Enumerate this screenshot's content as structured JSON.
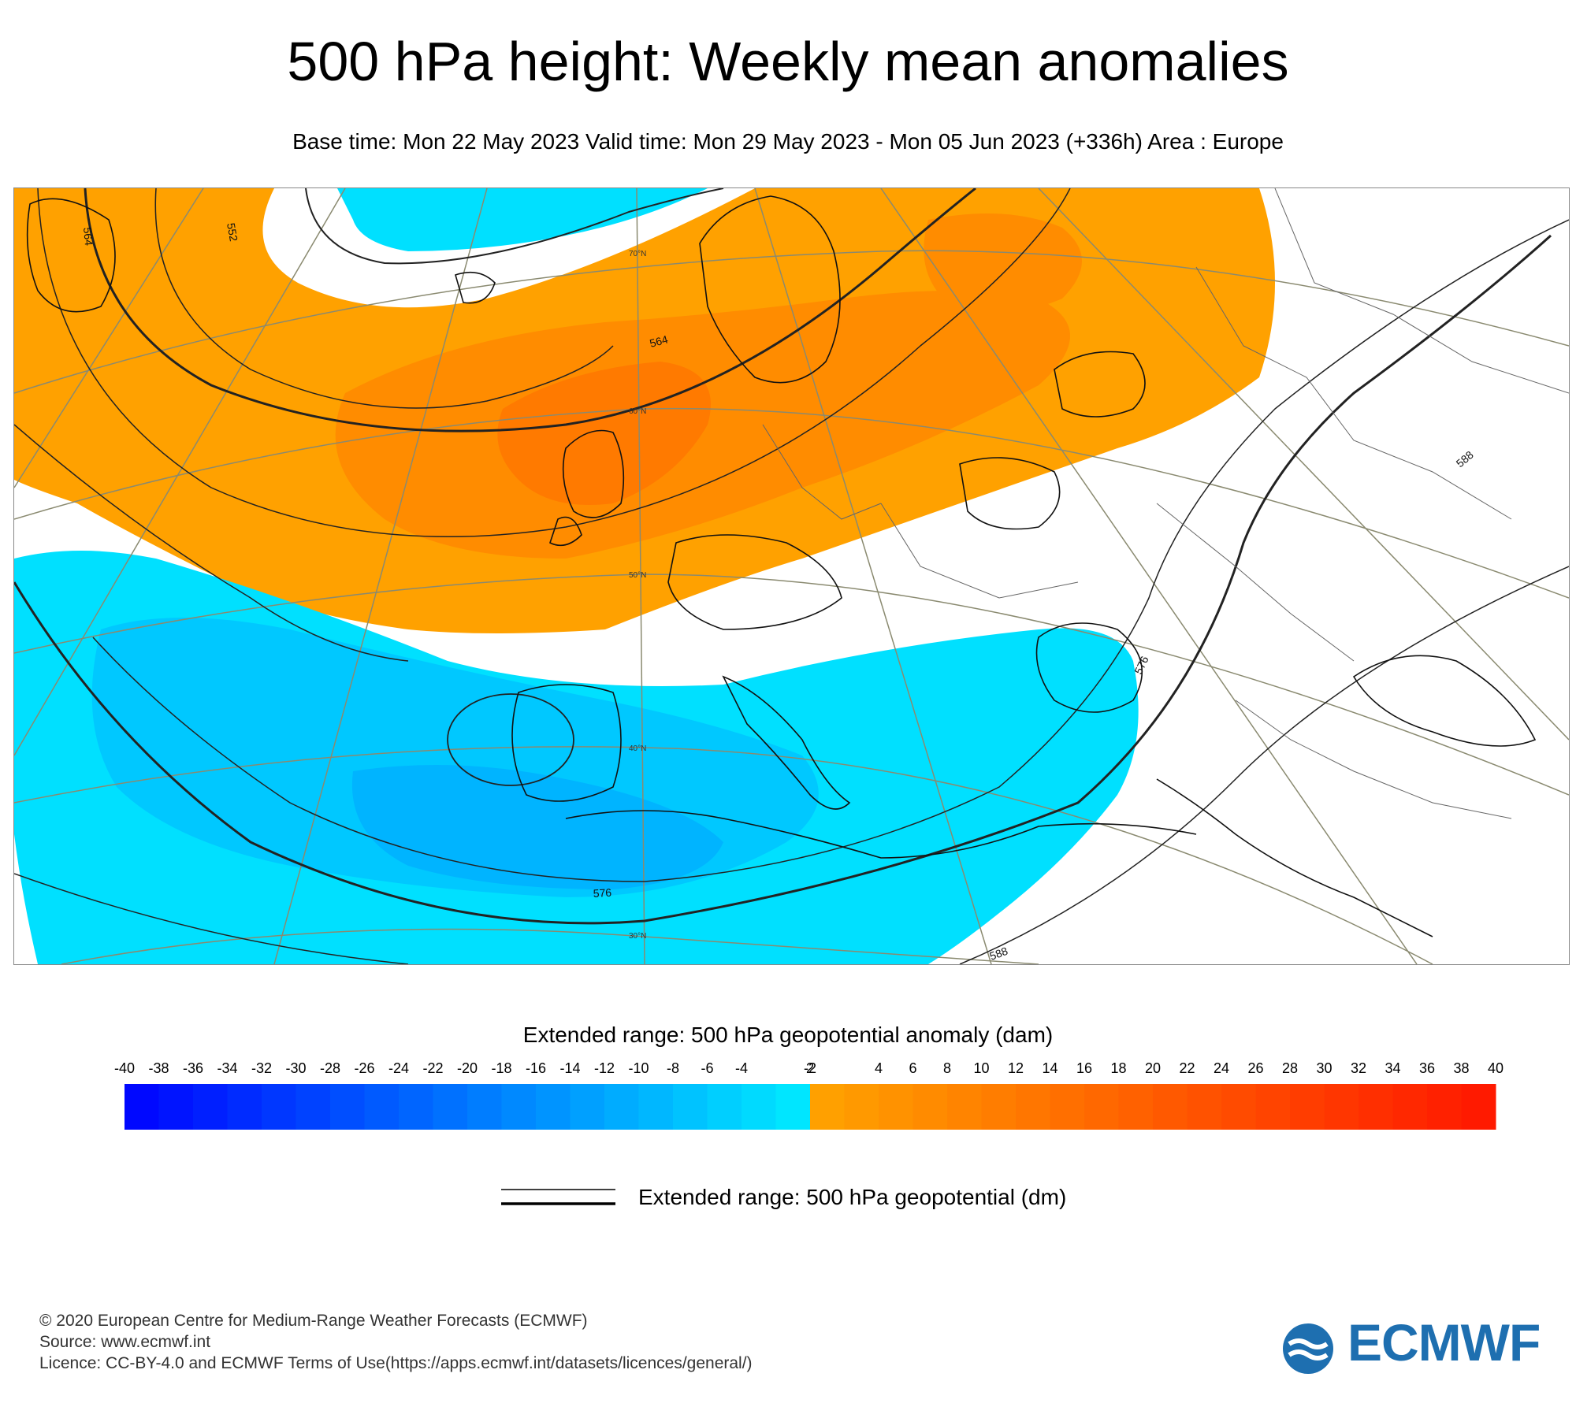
{
  "header": {
    "title": "500 hPa height: Weekly mean anomalies",
    "subtitle": "Base time: Mon 22 May 2023 Valid time: Mon 29 May 2023 - Mon 05 Jun 2023 (+336h) Area : Europe"
  },
  "map": {
    "region": "Europe",
    "latitude_labels": [
      "70°N",
      "60°N",
      "50°N",
      "40°N",
      "30°N"
    ],
    "contour_labels": [
      "552",
      "564",
      "564",
      "576",
      "576",
      "588",
      "588"
    ],
    "anomaly_colors": {
      "positive_weak": "#ffa100",
      "positive_mid": "#ff8c00",
      "positive_strong": "#ff7800",
      "negative_weak": "#00e0ff",
      "negative_mid": "#00c8ff",
      "negative_strong": "#00b4ff"
    }
  },
  "colorbar": {
    "title": "Extended range: 500 hPa geopotential anomaly (dam)",
    "negative_ticks": [
      "-40",
      "-38",
      "-36",
      "-34",
      "-32",
      "-30",
      "-28",
      "-26",
      "-24",
      "-22",
      "-20",
      "-18",
      "-16",
      "-14",
      "-12",
      "-10",
      "-8",
      "-6",
      "-4",
      "-2"
    ],
    "positive_ticks": [
      "2",
      "4",
      "6",
      "8",
      "10",
      "12",
      "14",
      "16",
      "18",
      "20",
      "22",
      "24",
      "26",
      "28",
      "30",
      "32",
      "34",
      "36",
      "38",
      "40"
    ],
    "negative_start_color": "#0008ff",
    "negative_end_color": "#00e6ff",
    "positive_start_color": "#ffa000",
    "positive_end_color": "#ff1a00"
  },
  "line_legend": {
    "label": "Extended range: 500 hPa geopotential (dm)"
  },
  "footer": {
    "copyright": "© 2020 European Centre for Medium-Range Weather Forecasts (ECMWF)",
    "source": "Source: www.ecmwf.int",
    "licence": "Licence: CC-BY-4.0 and ECMWF Terms of Use(https://apps.ecmwf.int/datasets/licences/general/)"
  },
  "logo": {
    "text": "ECMWF",
    "color": "#1e6fb0"
  }
}
